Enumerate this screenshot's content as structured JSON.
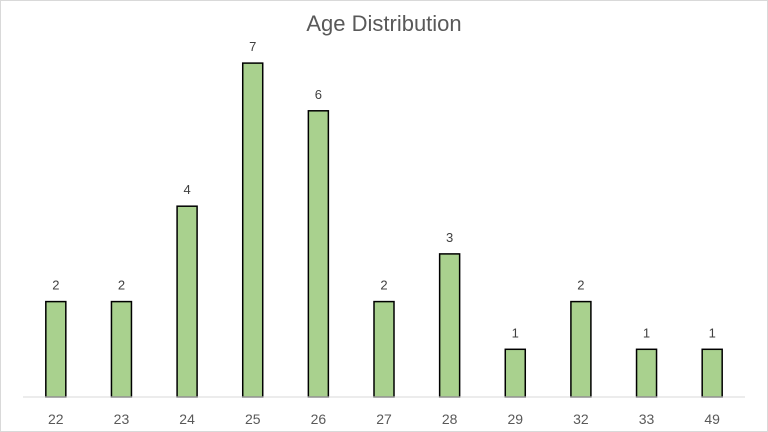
{
  "chart_data": {
    "type": "bar",
    "title": "Age Distribution",
    "xlabel": "",
    "ylabel": "",
    "categories": [
      "22",
      "23",
      "24",
      "25",
      "26",
      "27",
      "28",
      "29",
      "32",
      "33",
      "49"
    ],
    "values": [
      2,
      2,
      4,
      7,
      6,
      2,
      3,
      1,
      2,
      1,
      1
    ],
    "ylim": [
      0,
      7
    ],
    "grid": false,
    "legend": "none",
    "data_labels": true,
    "colors": {
      "bar_fill": "#a9d18e",
      "bar_stroke": "#000000",
      "axis": "#d9d9d9",
      "text": "#595959"
    }
  }
}
